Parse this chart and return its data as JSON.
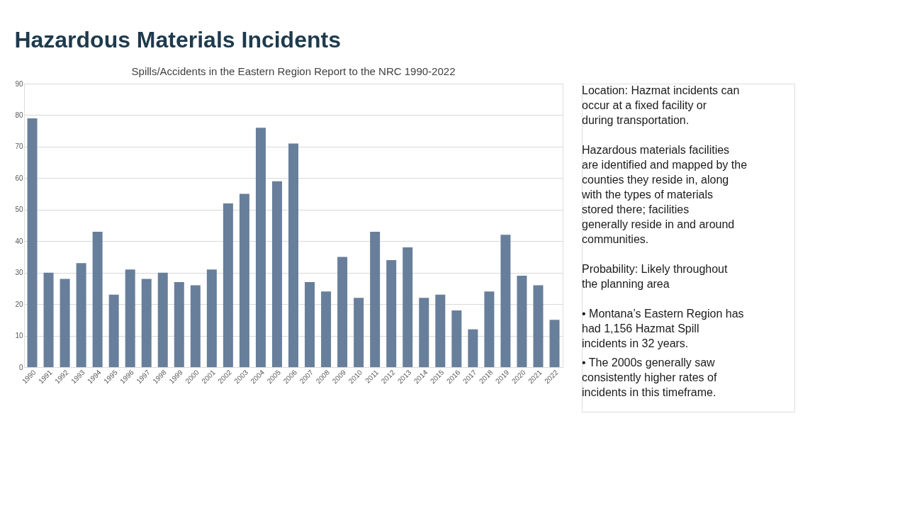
{
  "chart_data": {
    "type": "bar",
    "title": "Hazardous Materials Incidents",
    "subtitle": "Spills/Accidents in the Eastern Region Report to the NRC 1990-2022",
    "categories": [
      "1990",
      "1991",
      "1992",
      "1993",
      "1994",
      "1995",
      "1996",
      "1997",
      "1998",
      "1999",
      "2000",
      "2001",
      "2002",
      "2003",
      "2004",
      "2005",
      "2006",
      "2007",
      "2008",
      "2009",
      "2010",
      "2011",
      "2012",
      "2013",
      "2014",
      "2015",
      "2016",
      "2017",
      "2018",
      "2019",
      "2020",
      "2021",
      "2022"
    ],
    "values": [
      79,
      30,
      28,
      33,
      43,
      23,
      31,
      28,
      30,
      27,
      26,
      31,
      52,
      55,
      76,
      59,
      71,
      27,
      24,
      35,
      22,
      43,
      34,
      38,
      22,
      23,
      18,
      12,
      24,
      42,
      29,
      26,
      15
    ],
    "color": "#687f9b",
    "ylim": [
      0,
      90
    ],
    "yticks": [
      0,
      10,
      20,
      30,
      40,
      50,
      60,
      70,
      80,
      90
    ],
    "grid": "y",
    "annotations": [
      "Location: Hazmat incidents can occur at a fixed facility or during transportation.",
      "Hazardous materials facilities are identified and mapped by the counties they reside in, along with the types of materials stored there; facilities generally reside in and around communities.",
      "Probability: Likely throughout the planning area",
      "• Montana’s Eastern Region has had 1,156 Hazmat Spill incidents in 32 years.",
      "• The 2000s generally saw consistently higher rates of incidents in this timeframe."
    ]
  }
}
